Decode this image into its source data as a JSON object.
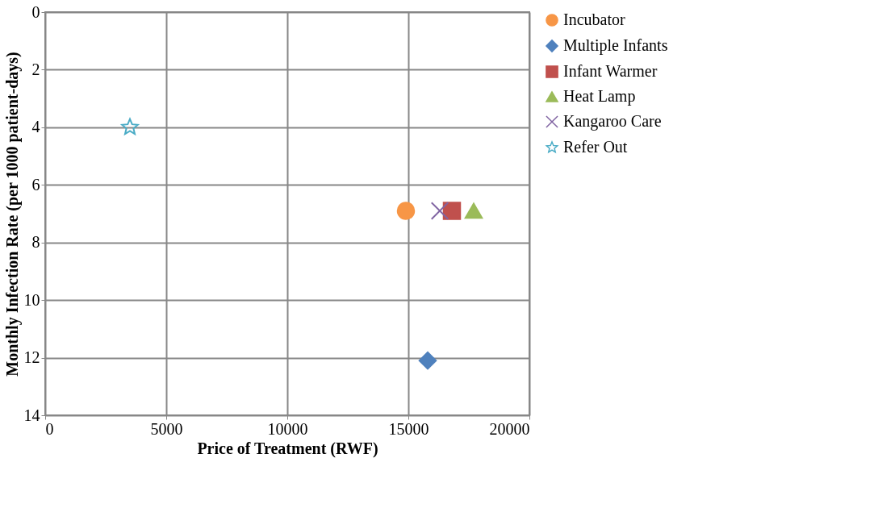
{
  "chart_data": {
    "type": "scatter",
    "xlabel": "Price of Treatment (RWF)",
    "ylabel": "Monthly Infection Rate (per 1000 patient-days)",
    "xlim": [
      0,
      20000
    ],
    "xticks": [
      0,
      {
        "value": 5000,
        "label": "5000"
      },
      {
        "value": 10000,
        "label": "10000"
      },
      {
        "value": 15000,
        "label": "15000"
      },
      {
        "value": 20000,
        "label": "20000"
      }
    ],
    "ylim": [
      14,
      0
    ],
    "yticks": [
      0,
      2,
      4,
      6,
      8,
      10,
      12,
      14
    ],
    "grid": true,
    "legend": "right",
    "series": [
      {
        "name": "Incubator",
        "color": "#f79646",
        "marker": "circle",
        "x": [
          14900
        ],
        "values": [
          6.9
        ]
      },
      {
        "name": "Multiple Infants",
        "color": "#4f81bd",
        "marker": "diamond",
        "x": [
          15800
        ],
        "values": [
          12.1
        ]
      },
      {
        "name": "Infant Warmer",
        "color": "#c0504d",
        "marker": "square",
        "x": [
          16800
        ],
        "values": [
          6.9
        ]
      },
      {
        "name": "Heat Lamp",
        "color": "#9bbb59",
        "marker": "triangle",
        "x": [
          17700
        ],
        "values": [
          6.9
        ]
      },
      {
        "name": "Kangaroo Care",
        "color": "#8064a2",
        "marker": "cross",
        "x": [
          16300
        ],
        "values": [
          6.9
        ]
      },
      {
        "name": "Refer Out",
        "color": "#4bacc6",
        "marker": "star",
        "x": [
          3500
        ],
        "values": [
          4
        ]
      }
    ]
  }
}
